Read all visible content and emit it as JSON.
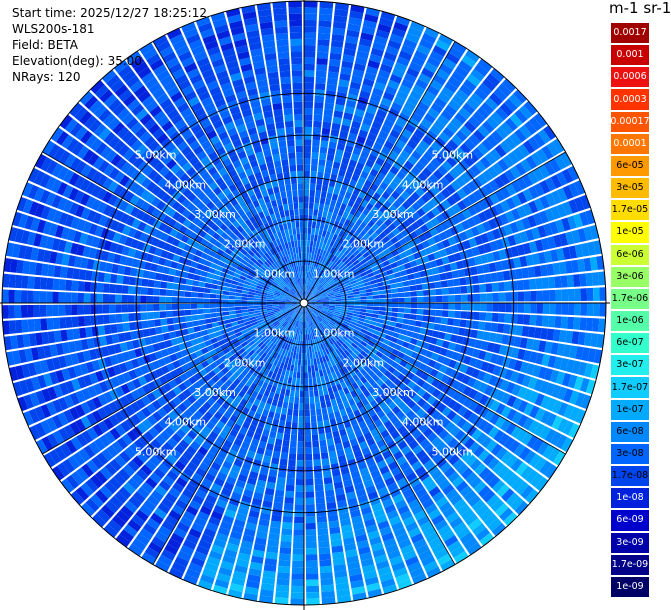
{
  "info": {
    "start_time": "Start time: 2025/12/27 18:25:12",
    "instrument": "WLS200s-181",
    "field": "Field: BETA",
    "elevation": "Elevation(deg): 35.00",
    "nrays": "NRays: 120"
  },
  "colorbar": {
    "units_title": "m-1 sr-1",
    "levels": [
      "0.0017",
      "0.001",
      "0.0006",
      "0.0003",
      "0.00017",
      "0.0001",
      "6e-05",
      "3e-05",
      "1.7e-05",
      "1e-05",
      "6e-06",
      "3e-06",
      "1.7e-06",
      "1e-06",
      "6e-07",
      "3e-07",
      "1.7e-07",
      "1e-07",
      "6e-08",
      "3e-08",
      "1.7e-08",
      "1e-08",
      "6e-09",
      "3e-09",
      "1.7e-09",
      "1e-09"
    ],
    "colors": [
      "#a00000",
      "#c80000",
      "#ee1111",
      "#ff3300",
      "#ff5500",
      "#ff7700",
      "#ff9900",
      "#ffbb00",
      "#ffdd00",
      "#ffff00",
      "#ccff33",
      "#99ff66",
      "#77ff88",
      "#55ffaa",
      "#33ffcc",
      "#22eeee",
      "#11ccff",
      "#00aaff",
      "#0088ff",
      "#0066ff",
      "#0044ee",
      "#0022dd",
      "#0000cc",
      "#0000aa",
      "#000088",
      "#000066"
    ]
  },
  "chart_data": {
    "type": "heatmap",
    "projection": "polar (PPI)",
    "nrays": 120,
    "range_rings_km": [
      1,
      2,
      3,
      4,
      5
    ],
    "ring_labels": [
      "1.00km",
      "2.00km",
      "3.00km",
      "4.00km",
      "5.00km"
    ],
    "max_range_km": 7.2,
    "spoke_interval_deg": 30,
    "grid": true,
    "dominant_values_near": "3e-08 to 6e-08",
    "dominant_values_far_sector_south_east": "1e-07 to 3e-07"
  }
}
